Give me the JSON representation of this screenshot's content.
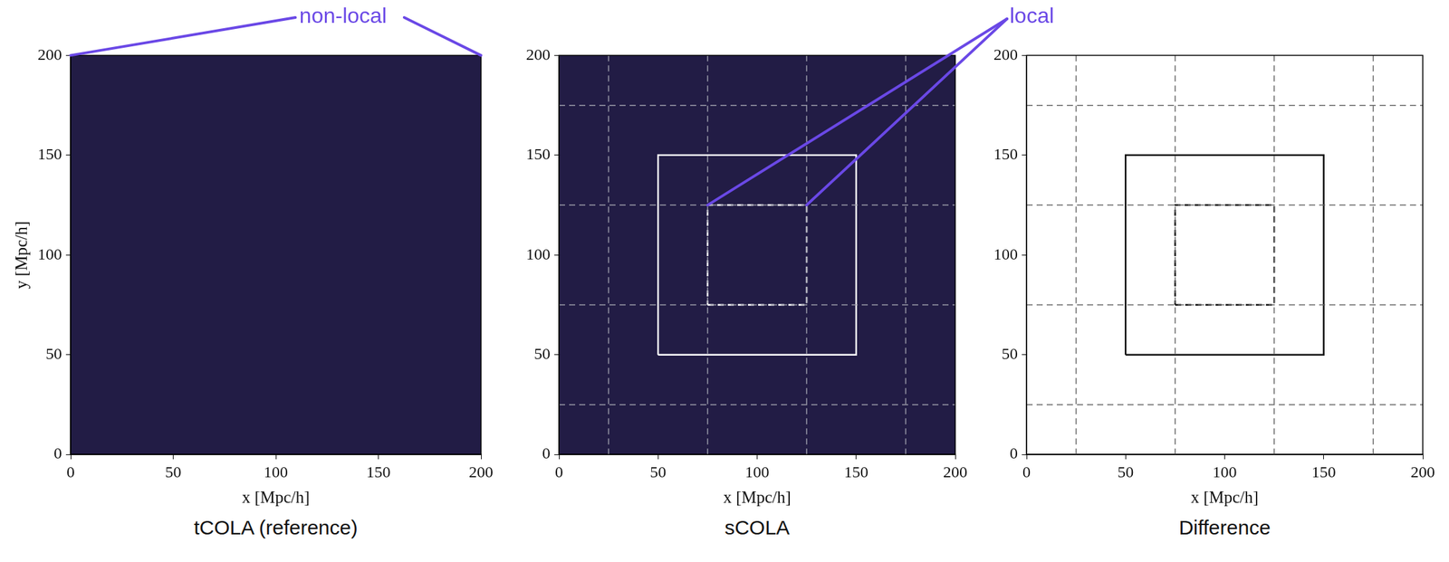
{
  "chart_data": [
    {
      "type": "image",
      "caption": "tCOLA (reference)",
      "x_label": "x [Mpc/h]",
      "y_label": "y [Mpc/h]",
      "xlim": [
        0,
        200
      ],
      "ylim": [
        0,
        200
      ],
      "xticks": [
        0,
        50,
        100,
        150,
        200
      ],
      "yticks": [
        0,
        50,
        100,
        150,
        200
      ],
      "background": "#221c45",
      "grid_lines": null,
      "boxes": []
    },
    {
      "type": "image",
      "caption": "sCOLA",
      "x_label": "x [Mpc/h]",
      "xlim": [
        0,
        200
      ],
      "ylim": [
        0,
        200
      ],
      "xticks": [
        0,
        50,
        100,
        150,
        200
      ],
      "yticks": [
        0,
        50,
        100,
        150,
        200
      ],
      "background": "#221c45",
      "grid_lines": {
        "x": [
          25,
          75,
          125,
          175
        ],
        "y": [
          25,
          75,
          125,
          175
        ],
        "color": "#9a9aa8",
        "line_style": "dashed"
      },
      "boxes": [
        {
          "x": [
            50,
            150
          ],
          "y": [
            50,
            150
          ],
          "color": "#ffffff",
          "line_style": "solid"
        },
        {
          "x": [
            75,
            125
          ],
          "y": [
            75,
            125
          ],
          "color": "#ffffff",
          "line_style": "dashed"
        }
      ]
    },
    {
      "type": "image",
      "caption": "Difference",
      "x_label": "x [Mpc/h]",
      "xlim": [
        0,
        200
      ],
      "ylim": [
        0,
        200
      ],
      "xticks": [
        0,
        50,
        100,
        150,
        200
      ],
      "yticks": [
        0,
        50,
        100,
        150,
        200
      ],
      "background": "#ffffff",
      "grid_lines": {
        "x": [
          25,
          75,
          125,
          175
        ],
        "y": [
          25,
          75,
          125,
          175
        ],
        "color": "#666666",
        "line_style": "dashed"
      },
      "boxes": [
        {
          "x": [
            50,
            150
          ],
          "y": [
            50,
            150
          ],
          "color": "#111111",
          "line_style": "solid"
        },
        {
          "x": [
            75,
            125
          ],
          "y": [
            75,
            125
          ],
          "color": "#111111",
          "line_style": "dashed"
        }
      ]
    }
  ],
  "annotations": [
    {
      "text": "non-local",
      "color": "#6a48e6",
      "panel": 0,
      "targets": [
        [
          0,
          200
        ],
        [
          200,
          200
        ]
      ]
    },
    {
      "text": "local",
      "color": "#6a48e6",
      "panel": 1,
      "targets": [
        [
          75,
          125
        ],
        [
          125,
          125
        ]
      ]
    }
  ]
}
